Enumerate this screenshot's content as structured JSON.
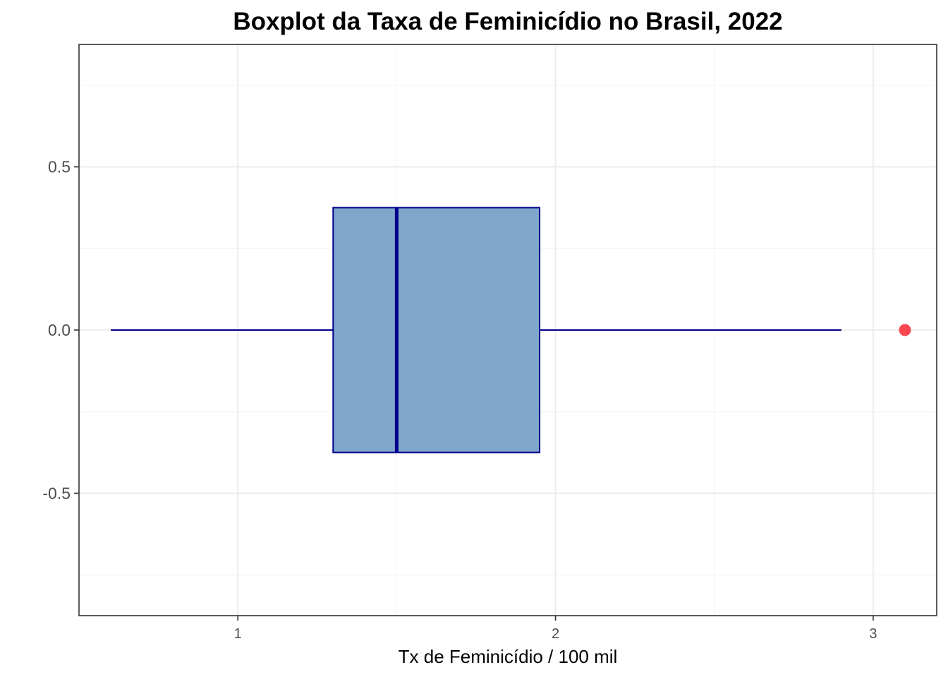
{
  "chart_data": {
    "type": "boxplot",
    "title": "Boxplot da Taxa de Feminicídio no Brasil, 2022",
    "xlabel": "Tx de Feminicídio / 100 mil",
    "ylabel": "",
    "xlim": [
      0.5,
      3.2
    ],
    "ylim": [
      -0.875,
      0.875
    ],
    "x_ticks": [
      1,
      2,
      3
    ],
    "x_tick_labels": [
      "1",
      "2",
      "3"
    ],
    "y_ticks": [
      0.5,
      0.0,
      -0.5
    ],
    "y_tick_labels": [
      "0.5",
      "0.0",
      "-0.5"
    ],
    "grid": true,
    "box": {
      "whisker_low": 0.6,
      "q1": 1.3,
      "median": 1.5,
      "q3": 1.95,
      "whisker_high": 2.9,
      "y_center": 0.0,
      "half_width": 0.375
    },
    "outliers": [
      3.1
    ],
    "colors": {
      "box_fill": "#7EA7CB",
      "box_stroke": "#00008B",
      "median": "#00008B",
      "whisker": "#00008B",
      "outlier": "#F8474F",
      "grid_major": "#EBEBEB",
      "grid_minor": "#F3F3F3",
      "panel_border": "#333333"
    }
  }
}
